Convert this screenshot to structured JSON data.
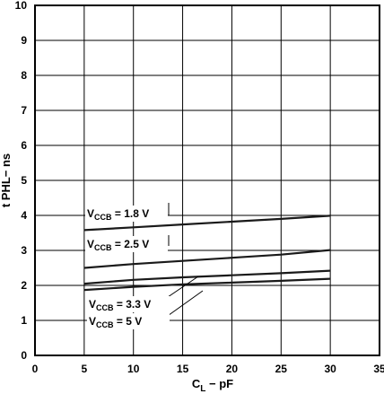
{
  "chart_data": {
    "type": "line",
    "xlabel": "C",
    "xlabel_sub": "L",
    "xlabel_unit": " − pF",
    "ylabel": "t PHL− ns",
    "xlim": [
      0,
      35
    ],
    "ylim": [
      0,
      10
    ],
    "x_ticks": [
      "0",
      "5",
      "10",
      "15",
      "20",
      "25",
      "30",
      "35"
    ],
    "y_ticks": [
      "0",
      "1",
      "2",
      "3",
      "4",
      "5",
      "6",
      "7",
      "8",
      "9",
      "10"
    ],
    "grid": true,
    "series": [
      {
        "name": "1.8 V",
        "x": [
          5,
          10,
          15,
          20,
          25,
          30
        ],
        "y": [
          3.58,
          3.66,
          3.74,
          3.82,
          3.9,
          3.99
        ]
      },
      {
        "name": "2.5 V",
        "x": [
          5,
          10,
          15,
          20,
          25,
          30
        ],
        "y": [
          2.5,
          2.61,
          2.7,
          2.79,
          2.88,
          3.01
        ]
      },
      {
        "name": "3.3 V",
        "x": [
          5,
          10,
          15,
          20,
          25,
          30
        ],
        "y": [
          2.05,
          2.16,
          2.23,
          2.29,
          2.35,
          2.42
        ]
      },
      {
        "name": "5 V",
        "x": [
          5,
          10,
          15,
          20,
          25,
          30
        ],
        "y": [
          1.87,
          1.96,
          2.03,
          2.08,
          2.13,
          2.19
        ]
      }
    ],
    "annotations": [
      {
        "prefix": "V",
        "sub": "CCB",
        "suffix": " = 1.8 V"
      },
      {
        "prefix": "V",
        "sub": "CCB",
        "suffix": " = 2.5 V"
      },
      {
        "prefix": "V",
        "sub": "CCB",
        "suffix": " = 3.3 V"
      },
      {
        "prefix": "V",
        "sub": "CCB",
        "suffix": " = 5 V"
      }
    ]
  }
}
